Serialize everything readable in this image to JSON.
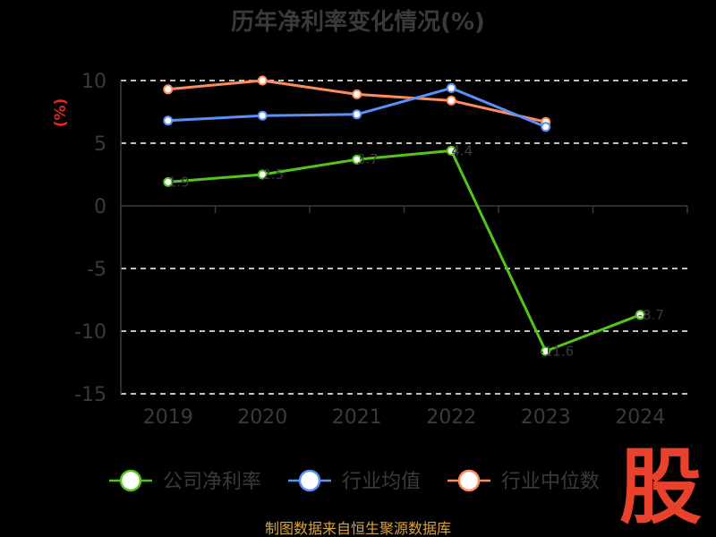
{
  "colors": {
    "company": "#52c41a",
    "industry_avg": "#5b8ff9",
    "industry_median": "#ff8c5a",
    "grid": "#ffffff",
    "axis": "#3a3a3a",
    "unit": "#e0262a",
    "source": "#d9a441",
    "logo": "#e8412c"
  },
  "chart_data": {
    "type": "line",
    "title": "历年净利率变化情况(%)",
    "ylabel": "(%)",
    "categories": [
      "2019",
      "2020",
      "2021",
      "2022",
      "2023",
      "2024"
    ],
    "ylim": [
      -15,
      10
    ],
    "yticks": [
      10,
      5,
      0,
      -5,
      -10,
      -15
    ],
    "grid": true,
    "legend_position": "bottom",
    "series": [
      {
        "name": "公司净利率",
        "color": "#52c41a",
        "values": [
          1.9,
          2.5,
          3.7,
          4.4,
          -11.6,
          -8.7
        ]
      },
      {
        "name": "行业均值",
        "color": "#5b8ff9",
        "values": [
          6.8,
          7.2,
          7.3,
          9.4,
          6.3,
          null
        ]
      },
      {
        "name": "行业中位数",
        "color": "#ff8c5a",
        "values": [
          9.3,
          10.0,
          8.9,
          8.4,
          6.7,
          null
        ]
      }
    ]
  },
  "source": "制图数据来自恒生聚源数据库",
  "logo": "股"
}
